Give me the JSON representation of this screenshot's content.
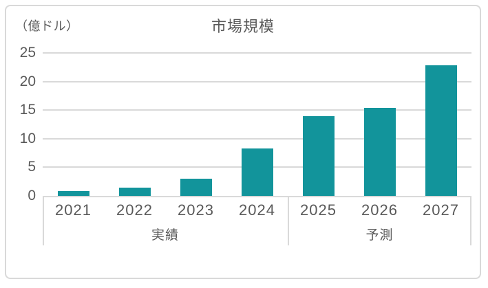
{
  "chart_data": {
    "type": "bar",
    "title": "市場規模",
    "unit_label": "（億ドル）",
    "categories": [
      "2021",
      "2022",
      "2023",
      "2024",
      "2025",
      "2026",
      "2027"
    ],
    "values": [
      0.8,
      1.4,
      3.0,
      8.3,
      13.9,
      15.4,
      22.8
    ],
    "y_ticks": [
      25,
      20,
      15,
      10,
      5,
      0
    ],
    "ylim": [
      0,
      25
    ],
    "grid": "on",
    "legend": "none",
    "groups": [
      {
        "label": "実績",
        "start_index": 0,
        "end_index": 3
      },
      {
        "label": "予測",
        "start_index": 4,
        "end_index": 6
      }
    ],
    "colors": {
      "bar": "#12949B",
      "grid": "#d9d9d9",
      "text": "#595959",
      "border": "#d9d9d9",
      "background": "#ffffff"
    }
  }
}
